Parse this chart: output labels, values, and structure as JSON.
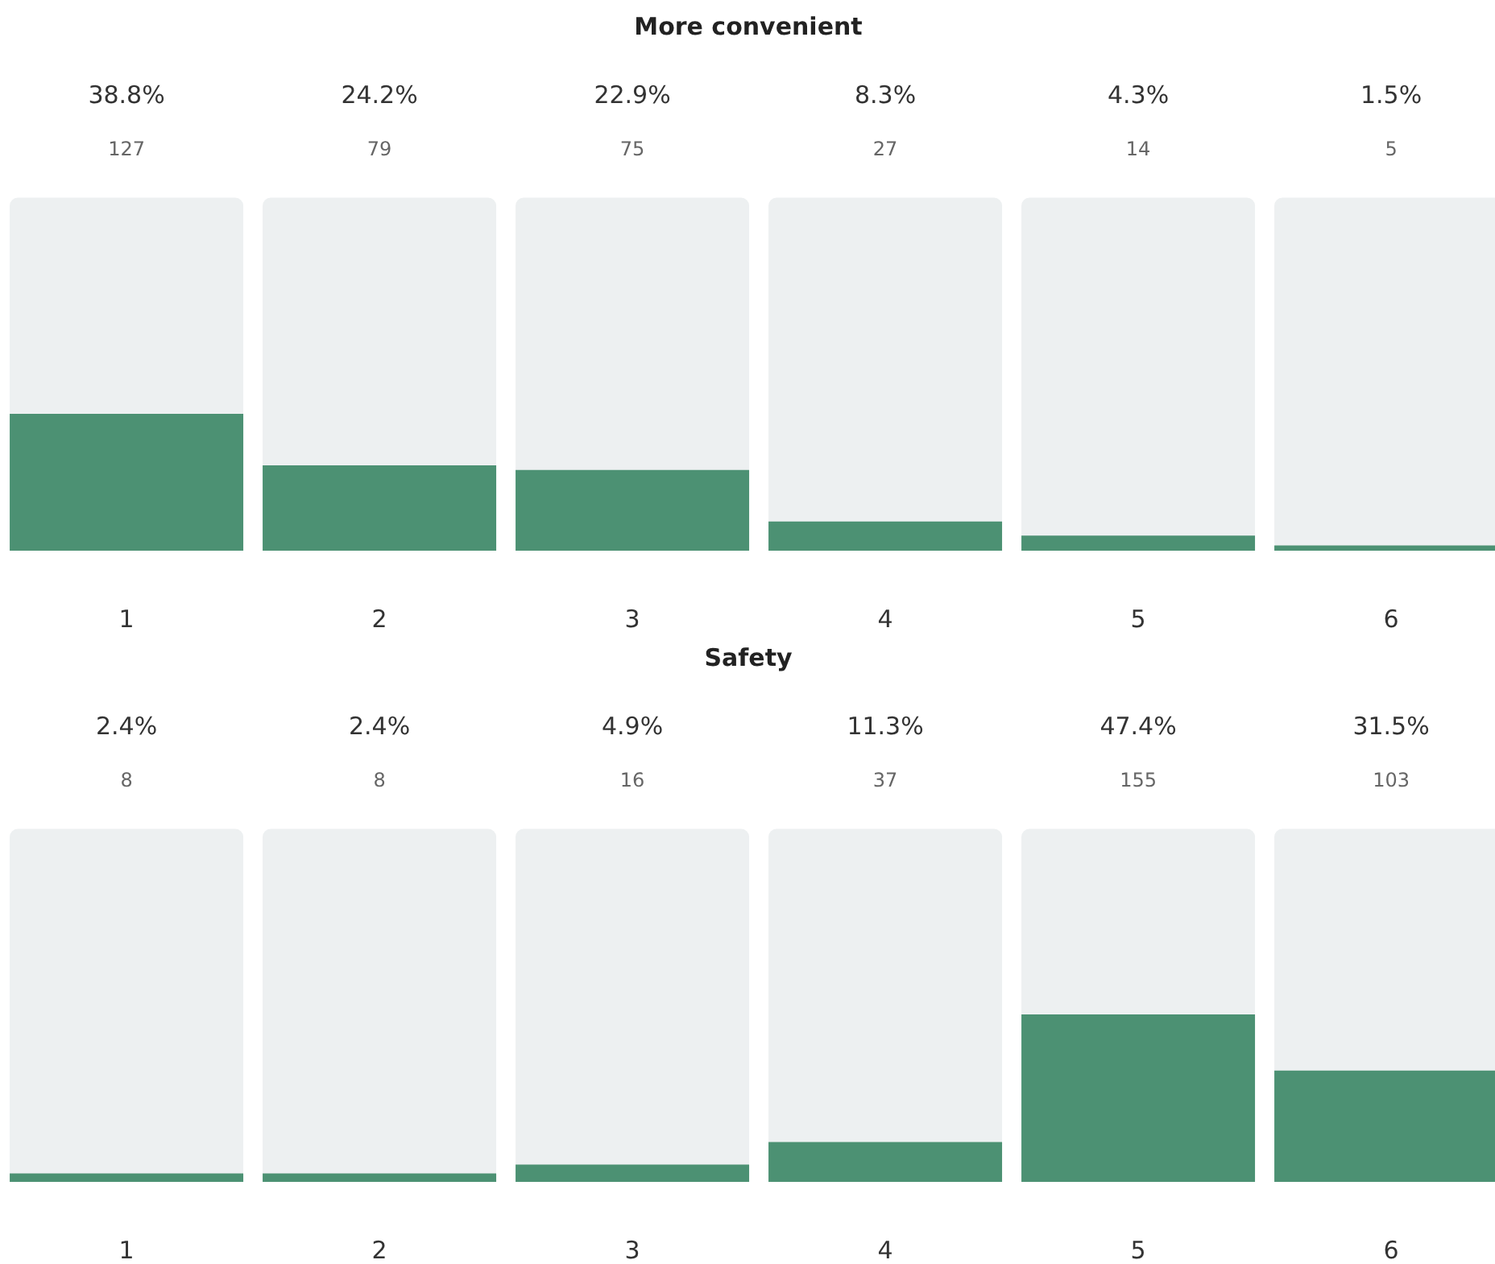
{
  "chart_data": [
    {
      "type": "bar",
      "title": "More convenient",
      "categories": [
        "1",
        "2",
        "3",
        "4",
        "5",
        "6"
      ],
      "series": [
        {
          "color": "#4c9173",
          "values": [
            38.8,
            24.2,
            22.9,
            8.3,
            4.3,
            1.5
          ],
          "value_labels": [
            "38.8%",
            "24.2%",
            "22.9%",
            "8.3%",
            "4.3%",
            "1.5%"
          ]
        }
      ],
      "annotations": [
        "127",
        "79",
        "75",
        "27",
        "14",
        "5"
      ],
      "tick_labels": "x",
      "grid": false
    },
    {
      "type": "bar",
      "title": "Safety",
      "categories": [
        "1",
        "2",
        "3",
        "4",
        "5",
        "6"
      ],
      "series": [
        {
          "color": "#4c9173",
          "values": [
            2.4,
            2.4,
            4.9,
            11.3,
            47.4,
            31.5
          ],
          "value_labels": [
            "2.4%",
            "2.4%",
            "4.9%",
            "11.3%",
            "47.4%",
            "31.5%"
          ]
        }
      ],
      "annotations": [
        "8",
        "8",
        "16",
        "37",
        "155",
        "103"
      ],
      "tick_labels": "x",
      "grid": false
    }
  ]
}
